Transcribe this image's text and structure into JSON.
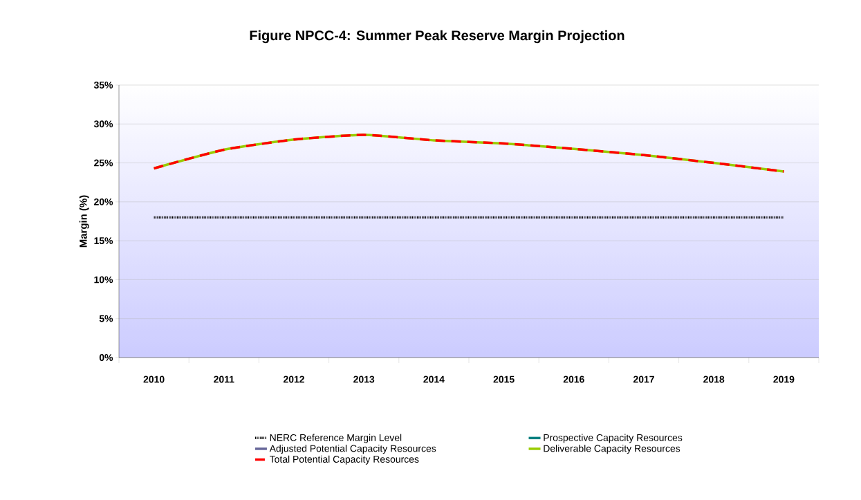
{
  "chart_data": {
    "type": "line",
    "title": "Figure NPCC-4: Summer Peak Reserve Margin Projection",
    "ylabel": "Margin (%)",
    "categories": [
      "2010",
      "2011",
      "2012",
      "2013",
      "2014",
      "2015",
      "2016",
      "2017",
      "2018",
      "2019"
    ],
    "series": [
      {
        "name": "NERC Reference Margin Level",
        "color": "#000000",
        "line_style": "dotted",
        "values": [
          18,
          18,
          18,
          18,
          18,
          18,
          18,
          18,
          18,
          18
        ]
      },
      {
        "name": "Prospective Capacity Resources",
        "color": "#008080",
        "line_style": "solid",
        "values": [
          null,
          null,
          null,
          null,
          null,
          null,
          null,
          null,
          null,
          null
        ]
      },
      {
        "name": "Adjusted Potential Capacity Resources",
        "color": "#666699",
        "line_style": "solid",
        "values": [
          null,
          null,
          null,
          null,
          null,
          null,
          null,
          null,
          null,
          null
        ]
      },
      {
        "name": "Deliverable Capacity Resources",
        "color": "#99cc00",
        "line_style": "solid",
        "values": [
          24.3,
          26.7,
          28.0,
          28.6,
          27.9,
          27.5,
          26.8,
          26.0,
          25.0,
          23.9
        ]
      },
      {
        "name": "Total Potential Capacity Resources",
        "color": "#ff0000",
        "line_style": "dashed",
        "values": [
          24.3,
          26.7,
          28.0,
          28.6,
          27.9,
          27.5,
          26.8,
          26.0,
          25.0,
          23.9
        ]
      }
    ],
    "ylim": [
      0,
      35
    ],
    "yticks": [
      {
        "value": 0,
        "label": "0%"
      },
      {
        "value": 5,
        "label": "5%"
      },
      {
        "value": 10,
        "label": "10%"
      },
      {
        "value": 15,
        "label": "15%"
      },
      {
        "value": 20,
        "label": "20%"
      },
      {
        "value": 25,
        "label": "25%"
      },
      {
        "value": 30,
        "label": "30%"
      },
      {
        "value": 35,
        "label": "35%"
      }
    ],
    "grid": "y",
    "legend": "bottom",
    "marker": "none"
  }
}
